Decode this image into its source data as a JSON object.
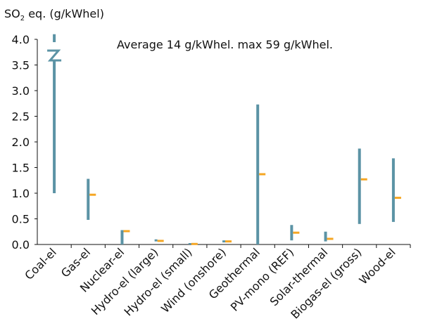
{
  "chart_data": {
    "type": "range",
    "ylabel": "SO2 eq. (g/kWhel)",
    "ylabel_main": "SO",
    "ylabel_sub": "2",
    "ylabel_rest": " eq. (g/kWhel)",
    "annotation": "Average 14 g/kWhel. max 59 g/kWhel.",
    "ylim": [
      0,
      4.0
    ],
    "yticks": [
      "0.0",
      "0.5",
      "1.0",
      "1.5",
      "2.0",
      "2.5",
      "3.0",
      "3.5",
      "4.0"
    ],
    "grid": false,
    "categories": [
      "Coal-el",
      "Gas-el",
      "Nuclear-el",
      "Hydro-el (large)",
      "Hydro-el (small)",
      "Wind (onshore)",
      "Geothermal",
      "PV-mono (REF)",
      "Solar-thermal",
      "Biogas-el (gross)",
      "Wood-el"
    ],
    "min": [
      1.0,
      0.48,
      0.0,
      0.06,
      0.0,
      0.04,
      0.0,
      0.08,
      0.06,
      0.4,
      0.44
    ],
    "max": [
      59,
      1.28,
      0.28,
      0.1,
      0.02,
      0.08,
      2.73,
      0.38,
      0.25,
      1.87,
      1.68
    ],
    "typical": [
      14,
      0.97,
      0.26,
      0.07,
      0.01,
      0.06,
      1.37,
      0.23,
      0.11,
      1.27,
      0.91
    ],
    "axis_break": {
      "category": "Coal-el",
      "drawn_top_value": 4.1
    },
    "colors": {
      "range_bar": "#5b93a5",
      "typical_marker": "#f5a623",
      "axis": "#111111"
    }
  }
}
